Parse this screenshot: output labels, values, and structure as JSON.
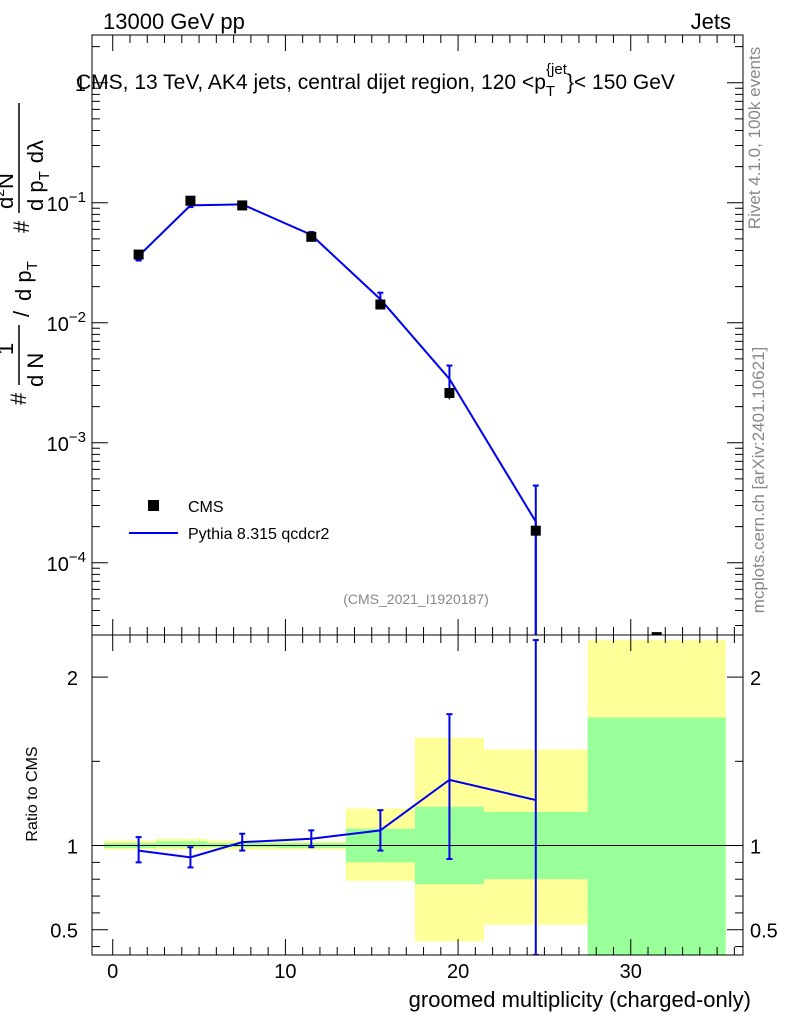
{
  "header": {
    "left": "13000 GeV pp",
    "right": "Jets"
  },
  "side": {
    "rivet": "Rivet 4.1.0,  100k events",
    "mcplots": "mcplots.cern.ch [arXiv:2401.10621]"
  },
  "chart_data": [
    {
      "type": "scatter",
      "title": "CMS, 13 TeV, AK4 jets, central dijet region, 120 <p_T^{jet}< 150 GeV",
      "title_parts": {
        "main": "CMS, 13 TeV, AK4 jets, central dijet region, 120 <p",
        "sub": "T",
        "sup": "{jet",
        "tail": "}< 150 GeV"
      },
      "watermark": "(CMS_2021_I1920187)",
      "yscale": "log",
      "ylim": [
        2.5e-05,
        2.5
      ],
      "xlim": [
        -1.2,
        36.5
      ],
      "ylabel_parts": {
        "a": "#",
        "b": "1",
        "c": "d N",
        "d": "/",
        "e": "d p",
        "f": "T",
        "g": "#",
        "h": "d",
        "i": "2",
        "j": "N",
        "k": "d p",
        "l": "T",
        "m": "dλ"
      },
      "y_ticks": [
        {
          "value": 0.0001,
          "base": "10",
          "exp": "−4"
        },
        {
          "value": 0.001,
          "base": "10",
          "exp": "−3"
        },
        {
          "value": 0.01,
          "base": "10",
          "exp": "−2"
        },
        {
          "value": 0.1,
          "base": "10",
          "exp": "−1"
        },
        {
          "value": 1,
          "base": "1",
          "exp": ""
        }
      ],
      "legend": [
        {
          "name": "CMS",
          "marker": "square",
          "color": "#000000"
        },
        {
          "name": "Pythia 8.315 qcdcr2",
          "marker": "line",
          "color": "#0000ee"
        }
      ],
      "series": [
        {
          "name": "CMS",
          "color": "#000000",
          "points": [
            {
              "x": 1.5,
              "y": 0.037,
              "lo": 0.034,
              "hi": 0.04
            },
            {
              "x": 4.5,
              "y": 0.104,
              "lo": 0.101,
              "hi": 0.107
            },
            {
              "x": 7.5,
              "y": 0.095,
              "lo": 0.092,
              "hi": 0.098
            },
            {
              "x": 11.5,
              "y": 0.052,
              "lo": 0.049,
              "hi": 0.055
            },
            {
              "x": 15.5,
              "y": 0.0142,
              "lo": 0.0132,
              "hi": 0.0152
            },
            {
              "x": 19.5,
              "y": 0.0026,
              "lo": 0.0023,
              "hi": 0.0029
            },
            {
              "x": 24.5,
              "y": 0.000185,
              "lo": 0.000175,
              "hi": 0.000195
            },
            {
              "x": 31.5,
              "y": 2.4e-05,
              "lo": 2.3e-05,
              "hi": 2.5e-05
            }
          ]
        },
        {
          "name": "Pythia 8.315 qcdcr2",
          "color": "#0000ee",
          "points": [
            {
              "x": 1.5,
              "y": 0.036,
              "lo": 0.033,
              "hi": 0.039
            },
            {
              "x": 4.5,
              "y": 0.095,
              "lo": 0.092,
              "hi": 0.098
            },
            {
              "x": 7.5,
              "y": 0.097,
              "lo": 0.094,
              "hi": 0.1
            },
            {
              "x": 11.5,
              "y": 0.054,
              "lo": 0.051,
              "hi": 0.057
            },
            {
              "x": 15.5,
              "y": 0.0157,
              "lo": 0.0137,
              "hi": 0.0178
            },
            {
              "x": 19.5,
              "y": 0.0034,
              "lo": 0.0026,
              "hi": 0.0044
            },
            {
              "x": 24.5,
              "y": 0.00022,
              "lo": 1e-05,
              "hi": 0.00044
            }
          ]
        }
      ]
    },
    {
      "type": "ratio",
      "ylabel": "Ratio to CMS",
      "xlabel": "groomed multiplicity (charged-only)",
      "ylim": [
        0.35,
        2.25
      ],
      "xlim": [
        -1.2,
        36.5
      ],
      "y_ticks": [
        {
          "value": 0.5,
          "label": "0.5"
        },
        {
          "value": 1,
          "label": "1"
        },
        {
          "value": 2,
          "label": "2"
        }
      ],
      "x_ticks": [
        {
          "value": 0,
          "label": "0"
        },
        {
          "value": 10,
          "label": "10"
        },
        {
          "value": 20,
          "label": "20"
        },
        {
          "value": 30,
          "label": "30"
        }
      ],
      "bands": [
        {
          "x0": -0.5,
          "x1": 2.5,
          "green": [
            0.985,
            1.015
          ],
          "yellow": [
            0.975,
            1.03
          ]
        },
        {
          "x0": 2.5,
          "x1": 5.5,
          "green": [
            0.99,
            1.025
          ],
          "yellow": [
            0.975,
            1.04
          ]
        },
        {
          "x0": 5.5,
          "x1": 9.5,
          "green": [
            0.99,
            1.015
          ],
          "yellow": [
            0.975,
            1.03
          ]
        },
        {
          "x0": 9.5,
          "x1": 13.5,
          "green": [
            0.985,
            1.015
          ],
          "yellow": [
            0.975,
            1.025
          ]
        },
        {
          "x0": 13.5,
          "x1": 17.5,
          "green": [
            0.9,
            1.1
          ],
          "yellow": [
            0.79,
            1.22
          ]
        },
        {
          "x0": 17.5,
          "x1": 21.5,
          "green": [
            0.77,
            1.23
          ],
          "yellow": [
            0.43,
            1.64
          ]
        },
        {
          "x0": 21.5,
          "x1": 27.5,
          "green": [
            0.8,
            1.2
          ],
          "yellow": [
            0.53,
            1.57
          ]
        },
        {
          "x0": 27.5,
          "x1": 35.5,
          "green": [
            0.35,
            1.76
          ],
          "yellow": [
            0.35,
            2.22
          ]
        }
      ],
      "ratio_series": {
        "name": "Pythia 8.315 qcdcr2 / CMS",
        "color": "#0000ee",
        "points": [
          {
            "x": 1.5,
            "y": 0.97,
            "lo": 0.9,
            "hi": 1.05
          },
          {
            "x": 4.5,
            "y": 0.93,
            "lo": 0.87,
            "hi": 0.99
          },
          {
            "x": 7.5,
            "y": 1.02,
            "lo": 0.97,
            "hi": 1.07
          },
          {
            "x": 11.5,
            "y": 1.04,
            "lo": 0.99,
            "hi": 1.09
          },
          {
            "x": 15.5,
            "y": 1.09,
            "lo": 0.97,
            "hi": 1.21
          },
          {
            "x": 19.5,
            "y": 1.39,
            "lo": 0.92,
            "hi": 1.78
          },
          {
            "x": 24.5,
            "y": 1.27,
            "lo": 0.35,
            "hi": 2.22
          }
        ]
      },
      "reference_line": 1
    }
  ]
}
